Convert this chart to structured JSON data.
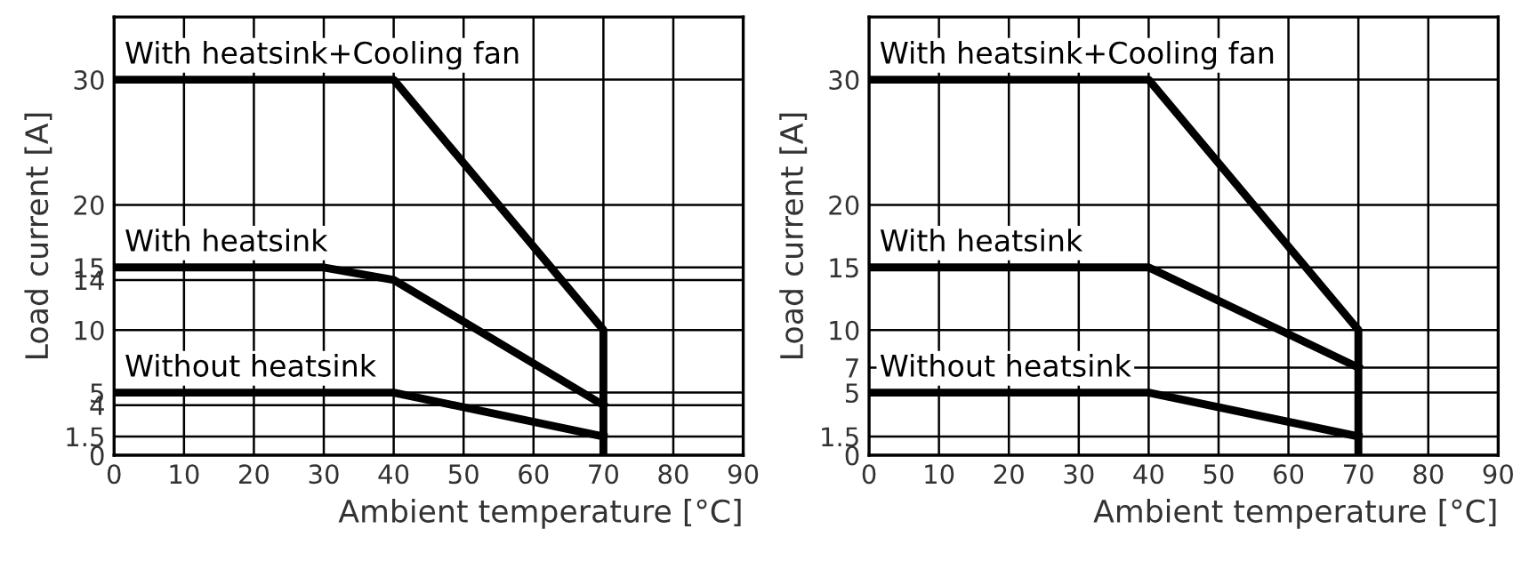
{
  "chart_data": [
    {
      "type": "line",
      "xlabel": "Ambient temperature [°C]",
      "ylabel": "Load current [A]",
      "xlim": [
        0,
        90
      ],
      "ylim": [
        0,
        35
      ],
      "xticks": [
        0,
        10,
        20,
        30,
        40,
        50,
        60,
        70,
        80,
        90
      ],
      "yticks": [
        0,
        1.5,
        4,
        5,
        10,
        14,
        15,
        20,
        30
      ],
      "grid": true,
      "legend": false,
      "marker": "none",
      "line_style": "solid",
      "series": [
        {
          "name": "With heatsink+Cooling fan",
          "color": "#000000",
          "x": [
            0,
            40,
            70,
            70
          ],
          "values": [
            30,
            30,
            10,
            0
          ]
        },
        {
          "name": "With heatsink",
          "color": "#000000",
          "x": [
            0,
            30,
            40,
            70
          ],
          "values": [
            15,
            15,
            14,
            4
          ]
        },
        {
          "name": "Without heatsink",
          "color": "#000000",
          "x": [
            0,
            40,
            70
          ],
          "values": [
            5,
            5,
            1.5
          ]
        }
      ]
    },
    {
      "type": "line",
      "xlabel": "Ambient temperature [°C]",
      "ylabel": "Load current [A]",
      "xlim": [
        0,
        90
      ],
      "ylim": [
        0,
        35
      ],
      "xticks": [
        0,
        10,
        20,
        30,
        40,
        50,
        60,
        70,
        80,
        90
      ],
      "yticks": [
        0,
        1.5,
        5,
        7,
        10,
        15,
        20,
        30
      ],
      "grid": true,
      "legend": false,
      "marker": "none",
      "line_style": "solid",
      "series": [
        {
          "name": "With heatsink+Cooling fan",
          "color": "#000000",
          "x": [
            0,
            40,
            70,
            70
          ],
          "values": [
            30,
            30,
            10,
            0
          ]
        },
        {
          "name": "With heatsink",
          "color": "#000000",
          "x": [
            0,
            40,
            70
          ],
          "values": [
            15,
            15,
            7
          ]
        },
        {
          "name": "Without heatsink",
          "color": "#000000",
          "x": [
            0,
            40,
            70
          ],
          "values": [
            5,
            5,
            1.5
          ]
        }
      ]
    }
  ]
}
